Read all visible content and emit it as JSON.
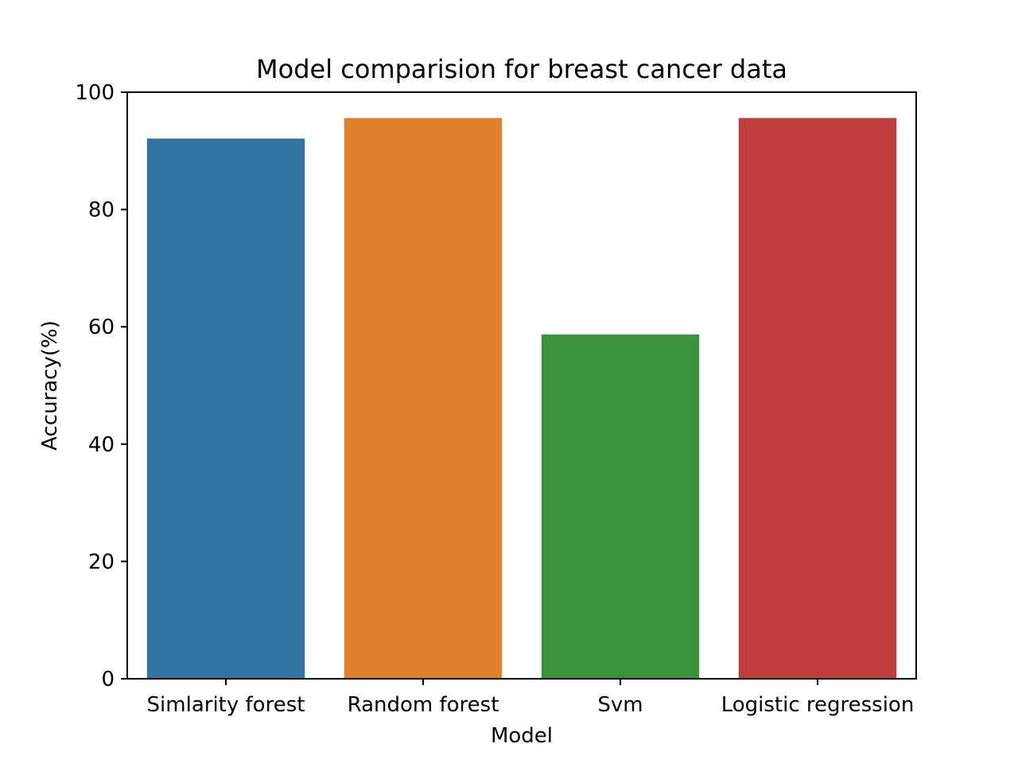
{
  "chart_data": {
    "type": "bar",
    "title": "Model comparision for breast cancer data",
    "xlabel": "Model",
    "ylabel": "Accuracy(%)",
    "categories": [
      "Simlarity forest",
      "Random forest",
      "Svm",
      "Logistic regression"
    ],
    "values": [
      92.1,
      95.6,
      58.7,
      95.6
    ],
    "colors": [
      "#3274a1",
      "#e1812c",
      "#3a923a",
      "#c03d3e"
    ],
    "ylim": [
      0,
      100
    ],
    "yticks": [
      0,
      20,
      40,
      60,
      80,
      100
    ],
    "ytick_labels": [
      "0",
      "20",
      "40",
      "60",
      "80",
      "100"
    ],
    "grid": false,
    "legend": "none"
  }
}
